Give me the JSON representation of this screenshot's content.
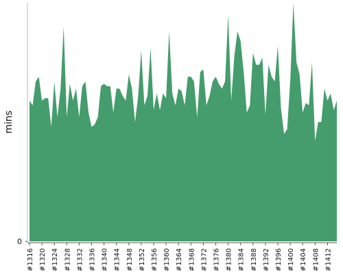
{
  "chart_data": {
    "type": "area",
    "y_label": "mins",
    "color": "#459c6c",
    "ylim": [
      0,
      100
    ],
    "yticks": [
      0
    ],
    "categories": [
      "#1316",
      null,
      null,
      null,
      "#1320",
      null,
      null,
      null,
      "#1324",
      null,
      null,
      null,
      "#1328",
      null,
      null,
      null,
      "#1332",
      null,
      null,
      null,
      "#1336",
      null,
      null,
      null,
      "#1340",
      null,
      null,
      null,
      "#1344",
      null,
      null,
      null,
      "#1348",
      null,
      null,
      null,
      "#1352",
      null,
      null,
      null,
      "#1356",
      null,
      null,
      null,
      "#1360",
      null,
      null,
      null,
      "#1364",
      null,
      null,
      null,
      "#1368",
      null,
      null,
      null,
      "#1372",
      null,
      null,
      null,
      "#1376",
      null,
      null,
      null,
      "#1380",
      null,
      null,
      null,
      "#1384",
      null,
      null,
      null,
      "#1388",
      null,
      null,
      null,
      "#1392",
      null,
      null,
      null,
      "#1396",
      null,
      null,
      null,
      "#1400",
      null,
      null,
      null,
      "#1404",
      null,
      null,
      null,
      "#1408",
      null,
      null,
      null,
      "#1412",
      null,
      null,
      null
    ],
    "values": [
      59,
      57,
      67,
      69,
      59,
      60,
      60,
      48,
      67,
      52,
      64,
      90,
      52,
      66,
      59,
      64,
      52,
      65,
      67,
      54,
      48,
      49,
      52,
      65,
      66,
      65,
      65,
      54,
      64,
      64,
      61,
      59,
      70,
      64,
      50,
      61,
      80,
      57,
      61,
      81,
      55,
      62,
      55,
      62,
      60,
      88,
      62,
      57,
      64,
      63,
      57,
      69,
      69,
      67,
      52,
      71,
      72,
      57,
      61,
      67,
      69,
      66,
      64,
      67,
      95,
      59,
      78,
      88,
      84,
      71,
      54,
      57,
      79,
      74,
      74,
      77,
      53,
      74,
      69,
      67,
      82,
      56,
      45,
      47,
      67,
      100,
      75,
      70,
      54,
      58,
      57,
      75,
      42,
      50,
      50,
      64,
      59,
      62,
      55,
      59
    ]
  }
}
